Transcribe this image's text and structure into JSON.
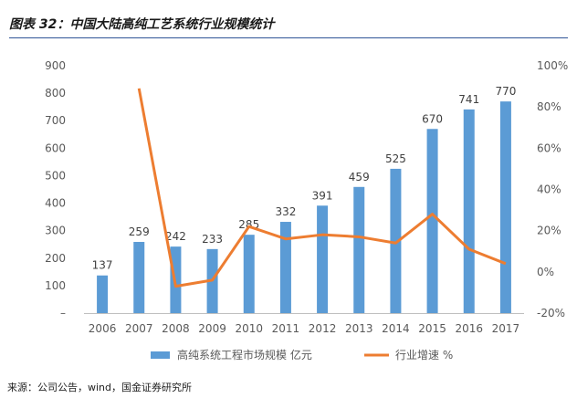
{
  "title": "图表 32：中国大陆高纯工艺系统行业规模统计",
  "source": "来源：公司公告，wind，国金证券研究所",
  "colors": {
    "bar": "#5b9bd5",
    "line": "#ed7d31",
    "rule": "#2f5597"
  },
  "chart_data": {
    "type": "bar",
    "title": "",
    "categories": [
      "2006",
      "2007",
      "2008",
      "2009",
      "2010",
      "2011",
      "2012",
      "2013",
      "2014",
      "2015",
      "2016",
      "2017"
    ],
    "series": [
      {
        "name": "高纯系统工程市场规模 亿元",
        "type": "bar",
        "axis": "left",
        "values": [
          137,
          259,
          242,
          233,
          285,
          332,
          391,
          459,
          525,
          670,
          741,
          770
        ]
      },
      {
        "name": "行业增速 %",
        "type": "line",
        "axis": "right",
        "values": [
          null,
          89,
          -7,
          -4,
          22,
          16,
          18,
          17,
          14,
          28,
          11,
          4
        ]
      }
    ],
    "ylim_left": [
      0,
      900
    ],
    "yticks_left": [
      "–",
      "100",
      "200",
      "300",
      "400",
      "500",
      "600",
      "700",
      "800",
      "900"
    ],
    "ylim_right": [
      -20,
      100
    ],
    "yticks_right": [
      "-20%",
      "0%",
      "20%",
      "40%",
      "60%",
      "80%",
      "100%"
    ],
    "legend_position": "bottom",
    "grid": false
  }
}
